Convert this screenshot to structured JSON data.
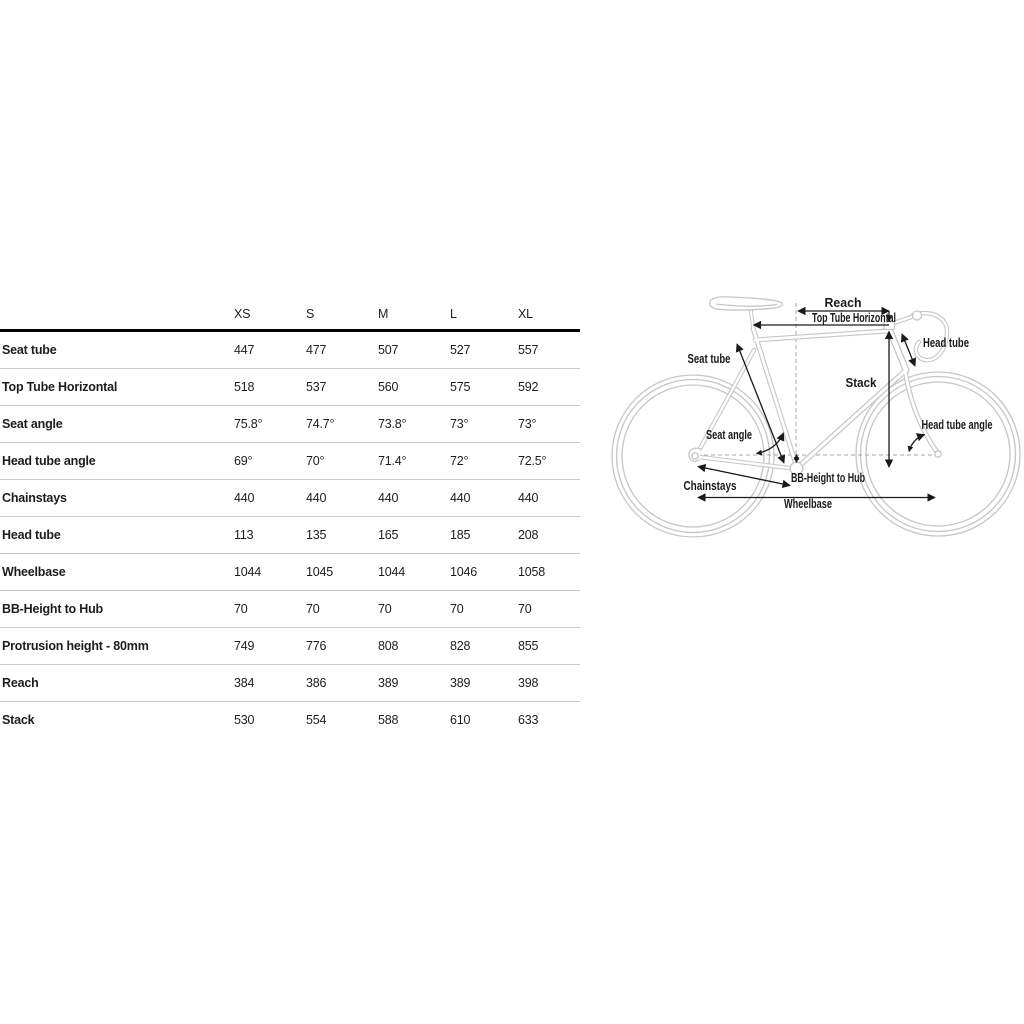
{
  "table": {
    "columns": [
      "XS",
      "S",
      "M",
      "L",
      "XL"
    ],
    "rows": [
      {
        "label": "Seat tube",
        "values": [
          "447",
          "477",
          "507",
          "527",
          "557"
        ]
      },
      {
        "label": "Top Tube Horizontal",
        "values": [
          "518",
          "537",
          "560",
          "575",
          "592"
        ]
      },
      {
        "label": "Seat angle",
        "values": [
          "75.8°",
          "74.7°",
          "73.8°",
          "73°",
          "73°"
        ]
      },
      {
        "label": "Head tube angle",
        "values": [
          "69°",
          "70°",
          "71.4°",
          "72°",
          "72.5°"
        ]
      },
      {
        "label": "Chainstays",
        "values": [
          "440",
          "440",
          "440",
          "440",
          "440"
        ]
      },
      {
        "label": "Head tube",
        "values": [
          "113",
          "135",
          "165",
          "185",
          "208"
        ]
      },
      {
        "label": "Wheelbase",
        "values": [
          "1044",
          "1045",
          "1044",
          "1046",
          "1058"
        ]
      },
      {
        "label": "BB-Height to Hub",
        "values": [
          "70",
          "70",
          "70",
          "70",
          "70"
        ]
      },
      {
        "label": "Protrusion height - 80mm",
        "values": [
          "749",
          "776",
          "808",
          "828",
          "855"
        ]
      },
      {
        "label": "Reach",
        "values": [
          "384",
          "386",
          "389",
          "389",
          "398"
        ]
      },
      {
        "label": "Stack",
        "values": [
          "530",
          "554",
          "588",
          "610",
          "633"
        ]
      }
    ]
  },
  "diagram": {
    "labels": {
      "reach": "Reach",
      "top_tube_horizontal": "Top Tube Horizontal",
      "seat_tube": "Seat tube",
      "head_tube": "Head tube",
      "stack": "Stack",
      "seat_angle": "Seat angle",
      "head_tube_angle": "Head tube angle",
      "chainstays": "Chainstays",
      "bb_height_to_hub": "BB-Height to Hub",
      "wheelbase": "Wheelbase"
    }
  },
  "colors": {
    "bike_outline": "#c6c6c6",
    "dashed_line": "#a6a6a6",
    "annotation": "#1a1a1a",
    "table_text": "#1d1d1b",
    "row_separator": "#c9c9c9",
    "header_rule": "#000000",
    "background": "#ffffff"
  }
}
